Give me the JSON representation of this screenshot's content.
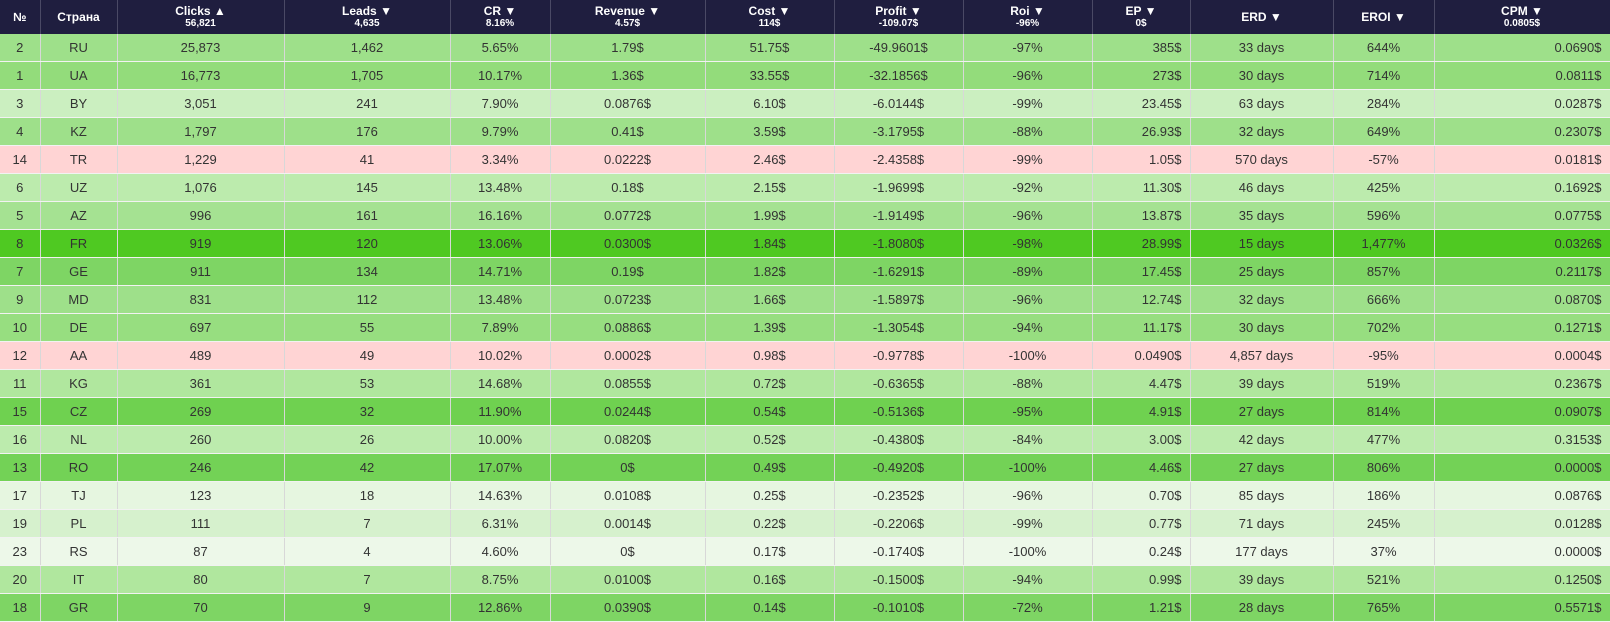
{
  "columns": [
    {
      "key": "no",
      "label": "№",
      "summary": ""
    },
    {
      "key": "country",
      "label": "Страна",
      "summary": ""
    },
    {
      "key": "clicks",
      "label": "Clicks ▲",
      "summary": "56,821"
    },
    {
      "key": "leads",
      "label": "Leads ▼",
      "summary": "4,635"
    },
    {
      "key": "cr",
      "label": "CR ▼",
      "summary": "8.16%"
    },
    {
      "key": "revenue",
      "label": "Revenue ▼",
      "summary": "4.57$"
    },
    {
      "key": "cost",
      "label": "Cost ▼",
      "summary": "114$"
    },
    {
      "key": "profit",
      "label": "Profit ▼",
      "summary": "-109.07$"
    },
    {
      "key": "roi",
      "label": "Roi ▼",
      "summary": "-96%"
    },
    {
      "key": "ep",
      "label": "EP ▼",
      "summary": "0$"
    },
    {
      "key": "erd",
      "label": "ERD ▼",
      "summary": ""
    },
    {
      "key": "eroi",
      "label": "EROI ▼",
      "summary": ""
    },
    {
      "key": "cpm",
      "label": "CPM ▼",
      "summary": "0.0805$"
    }
  ],
  "rows": [
    {
      "no": "2",
      "country": "RU",
      "clicks": "25,873",
      "leads": "1,462",
      "cr": "5.65%",
      "revenue": "1.79$",
      "cost": "51.75$",
      "profit": "-49.9601$",
      "roi": "-97%",
      "ep": "385$",
      "erd": "33 days",
      "eroi": "644%",
      "cpm": "0.0690$",
      "bg": "#9ee08a"
    },
    {
      "no": "1",
      "country": "UA",
      "clicks": "16,773",
      "leads": "1,705",
      "cr": "10.17%",
      "revenue": "1.36$",
      "cost": "33.55$",
      "profit": "-32.1856$",
      "roi": "-96%",
      "ep": "273$",
      "erd": "30 days",
      "eroi": "714%",
      "cpm": "0.0811$",
      "bg": "#93dc7b"
    },
    {
      "no": "3",
      "country": "BY",
      "clicks": "3,051",
      "leads": "241",
      "cr": "7.90%",
      "revenue": "0.0876$",
      "cost": "6.10$",
      "profit": "-6.0144$",
      "roi": "-99%",
      "ep": "23.45$",
      "erd": "63 days",
      "eroi": "284%",
      "cpm": "0.0287$",
      "bg": "#cbefc0"
    },
    {
      "no": "4",
      "country": "KZ",
      "clicks": "1,797",
      "leads": "176",
      "cr": "9.79%",
      "revenue": "0.41$",
      "cost": "3.59$",
      "profit": "-3.1795$",
      "roi": "-88%",
      "ep": "26.93$",
      "erd": "32 days",
      "eroi": "649%",
      "cpm": "0.2307$",
      "bg": "#9ee08a"
    },
    {
      "no": "14",
      "country": "TR",
      "clicks": "1,229",
      "leads": "41",
      "cr": "3.34%",
      "revenue": "0.0222$",
      "cost": "2.46$",
      "profit": "-2.4358$",
      "roi": "-99%",
      "ep": "1.05$",
      "erd": "570 days",
      "eroi": "-57%",
      "cpm": "0.0181$",
      "bg": "#ffd4d4"
    },
    {
      "no": "6",
      "country": "UZ",
      "clicks": "1,076",
      "leads": "145",
      "cr": "13.48%",
      "revenue": "0.18$",
      "cost": "2.15$",
      "profit": "-1.9699$",
      "roi": "-92%",
      "ep": "11.30$",
      "erd": "46 days",
      "eroi": "425%",
      "cpm": "0.1692$",
      "bg": "#bcebad"
    },
    {
      "no": "5",
      "country": "AZ",
      "clicks": "996",
      "leads": "161",
      "cr": "16.16%",
      "revenue": "0.0772$",
      "cost": "1.99$",
      "profit": "-1.9149$",
      "roi": "-96%",
      "ep": "13.87$",
      "erd": "35 days",
      "eroi": "596%",
      "cpm": "0.0775$",
      "bg": "#a5e292"
    },
    {
      "no": "8",
      "country": "FR",
      "clicks": "919",
      "leads": "120",
      "cr": "13.06%",
      "revenue": "0.0300$",
      "cost": "1.84$",
      "profit": "-1.8080$",
      "roi": "-98%",
      "ep": "28.99$",
      "erd": "15 days",
      "eroi": "1,477%",
      "cpm": "0.0326$",
      "bg": "#4fc922"
    },
    {
      "no": "7",
      "country": "GE",
      "clicks": "911",
      "leads": "134",
      "cr": "14.71%",
      "revenue": "0.19$",
      "cost": "1.82$",
      "profit": "-1.6291$",
      "roi": "-89%",
      "ep": "17.45$",
      "erd": "25 days",
      "eroi": "857%",
      "cpm": "0.2117$",
      "bg": "#7ed564"
    },
    {
      "no": "9",
      "country": "MD",
      "clicks": "831",
      "leads": "112",
      "cr": "13.48%",
      "revenue": "0.0723$",
      "cost": "1.66$",
      "profit": "-1.5897$",
      "roi": "-96%",
      "ep": "12.74$",
      "erd": "32 days",
      "eroi": "666%",
      "cpm": "0.0870$",
      "bg": "#9ee08a"
    },
    {
      "no": "10",
      "country": "DE",
      "clicks": "697",
      "leads": "55",
      "cr": "7.89%",
      "revenue": "0.0886$",
      "cost": "1.39$",
      "profit": "-1.3054$",
      "roi": "-94%",
      "ep": "11.17$",
      "erd": "30 days",
      "eroi": "702%",
      "cpm": "0.1271$",
      "bg": "#97de80"
    },
    {
      "no": "12",
      "country": "AA",
      "clicks": "489",
      "leads": "49",
      "cr": "10.02%",
      "revenue": "0.0002$",
      "cost": "0.98$",
      "profit": "-0.9778$",
      "roi": "-100%",
      "ep": "0.0490$",
      "erd": "4,857 days",
      "eroi": "-95%",
      "cpm": "0.0004$",
      "bg": "#ffd4d4"
    },
    {
      "no": "11",
      "country": "KG",
      "clicks": "361",
      "leads": "53",
      "cr": "14.68%",
      "revenue": "0.0855$",
      "cost": "0.72$",
      "profit": "-0.6365$",
      "roi": "-88%",
      "ep": "4.47$",
      "erd": "39 days",
      "eroi": "519%",
      "cpm": "0.2367$",
      "bg": "#b0e79e"
    },
    {
      "no": "15",
      "country": "CZ",
      "clicks": "269",
      "leads": "32",
      "cr": "11.90%",
      "revenue": "0.0244$",
      "cost": "0.54$",
      "profit": "-0.5136$",
      "roi": "-95%",
      "ep": "4.91$",
      "erd": "27 days",
      "eroi": "814%",
      "cpm": "0.0907$",
      "bg": "#6fd150"
    },
    {
      "no": "16",
      "country": "NL",
      "clicks": "260",
      "leads": "26",
      "cr": "10.00%",
      "revenue": "0.0820$",
      "cost": "0.52$",
      "profit": "-0.4380$",
      "roi": "-84%",
      "ep": "3.00$",
      "erd": "42 days",
      "eroi": "477%",
      "cpm": "0.3153$",
      "bg": "#bcebad"
    },
    {
      "no": "13",
      "country": "RO",
      "clicks": "246",
      "leads": "42",
      "cr": "17.07%",
      "revenue": "0$",
      "cost": "0.49$",
      "profit": "-0.4920$",
      "roi": "-100%",
      "ep": "4.46$",
      "erd": "27 days",
      "eroi": "806%",
      "cpm": "0.0000$",
      "bg": "#73d256"
    },
    {
      "no": "17",
      "country": "TJ",
      "clicks": "123",
      "leads": "18",
      "cr": "14.63%",
      "revenue": "0.0108$",
      "cost": "0.25$",
      "profit": "-0.2352$",
      "roi": "-96%",
      "ep": "0.70$",
      "erd": "85 days",
      "eroi": "186%",
      "cpm": "0.0876$",
      "bg": "#e6f6e0"
    },
    {
      "no": "19",
      "country": "PL",
      "clicks": "111",
      "leads": "7",
      "cr": "6.31%",
      "revenue": "0.0014$",
      "cost": "0.22$",
      "profit": "-0.2206$",
      "roi": "-99%",
      "ep": "0.77$",
      "erd": "71 days",
      "eroi": "245%",
      "cpm": "0.0128$",
      "bg": "#d6f1cd"
    },
    {
      "no": "23",
      "country": "RS",
      "clicks": "87",
      "leads": "4",
      "cr": "4.60%",
      "revenue": "0$",
      "cost": "0.17$",
      "profit": "-0.1740$",
      "roi": "-100%",
      "ep": "0.24$",
      "erd": "177 days",
      "eroi": "37%",
      "cpm": "0.0000$",
      "bg": "#edf8e9"
    },
    {
      "no": "20",
      "country": "IT",
      "clicks": "80",
      "leads": "7",
      "cr": "8.75%",
      "revenue": "0.0100$",
      "cost": "0.16$",
      "profit": "-0.1500$",
      "roi": "-94%",
      "ep": "0.99$",
      "erd": "39 days",
      "eroi": "521%",
      "cpm": "0.1250$",
      "bg": "#b0e79e"
    },
    {
      "no": "18",
      "country": "GR",
      "clicks": "70",
      "leads": "9",
      "cr": "12.86%",
      "revenue": "0.0390$",
      "cost": "0.14$",
      "profit": "-0.1010$",
      "roi": "-72%",
      "ep": "1.21$",
      "erd": "28 days",
      "eroi": "765%",
      "cpm": "0.5571$",
      "bg": "#7ed564"
    }
  ]
}
